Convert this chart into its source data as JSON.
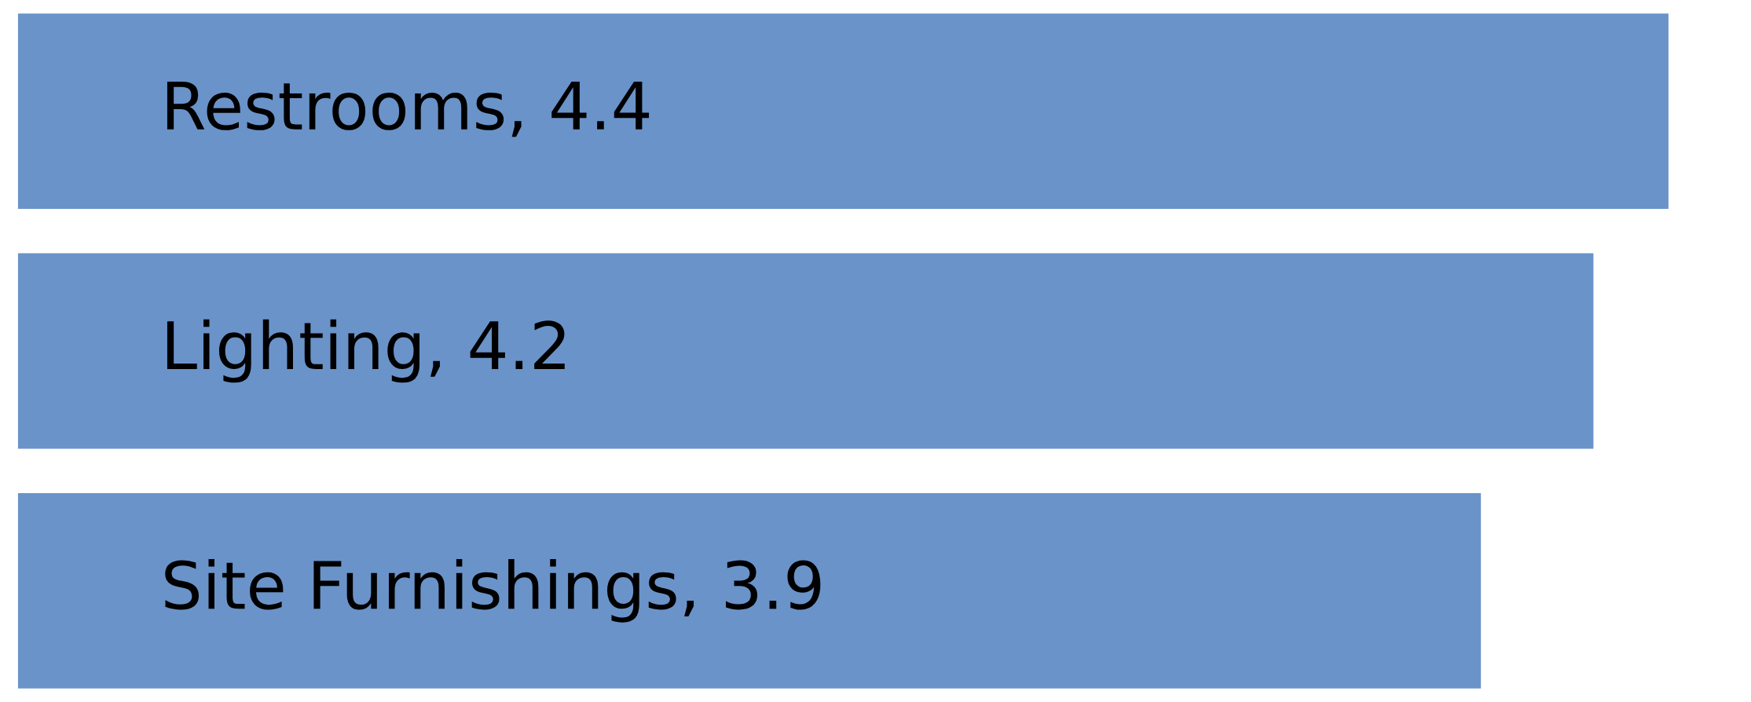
{
  "chart_data": {
    "type": "bar",
    "orientation": "horizontal",
    "categories": [
      null,
      null,
      null
    ],
    "values": [
      4.4,
      4.2,
      3.9
    ],
    "value_labels": [
      "Restrooms, 4.4",
      "Lighting, 4.2",
      "Site Furnishings, 3.9"
    ],
    "color": "#6a93c9"
  }
}
